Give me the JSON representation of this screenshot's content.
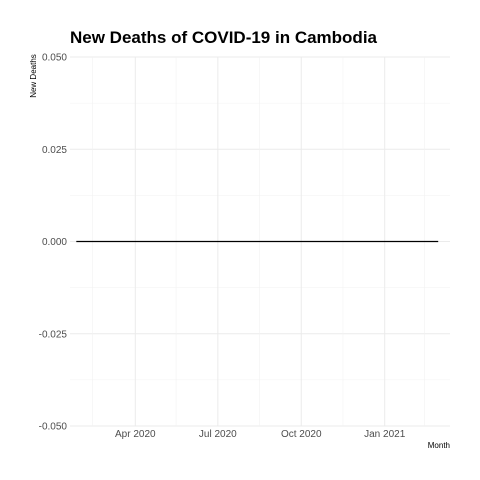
{
  "chart_data": {
    "type": "line",
    "title": "New Deaths of COVID-19 in Cambodia",
    "xlabel": "Month",
    "ylabel": "New Deaths",
    "x_range": [
      "2020-01-20",
      "2021-03-14"
    ],
    "ylim": [
      -0.05,
      0.05
    ],
    "y_ticks": [
      {
        "value": -0.05,
        "label": "-0.050"
      },
      {
        "value": -0.025,
        "label": "-0.025"
      },
      {
        "value": 0,
        "label": "0.000"
      },
      {
        "value": 0.025,
        "label": "0.025"
      },
      {
        "value": 0.05,
        "label": "0.050"
      }
    ],
    "x_ticks": [
      {
        "date": "2020-04-01",
        "label": "Apr 2020"
      },
      {
        "date": "2020-07-01",
        "label": "Jul 2020"
      },
      {
        "date": "2020-10-01",
        "label": "Oct 2020"
      },
      {
        "date": "2021-01-01",
        "label": "Jan 2021"
      }
    ],
    "x_minor_ticks": [
      "2020-02-14",
      "2020-05-16",
      "2020-08-16",
      "2020-11-16",
      "2021-02-14"
    ],
    "series": [
      {
        "color": "#000000",
        "points": [
          {
            "x": "2020-01-27",
            "y": 0
          },
          {
            "x": "2021-03-01",
            "y": 0
          }
        ]
      }
    ],
    "grid": true,
    "background": "#ffffff"
  }
}
